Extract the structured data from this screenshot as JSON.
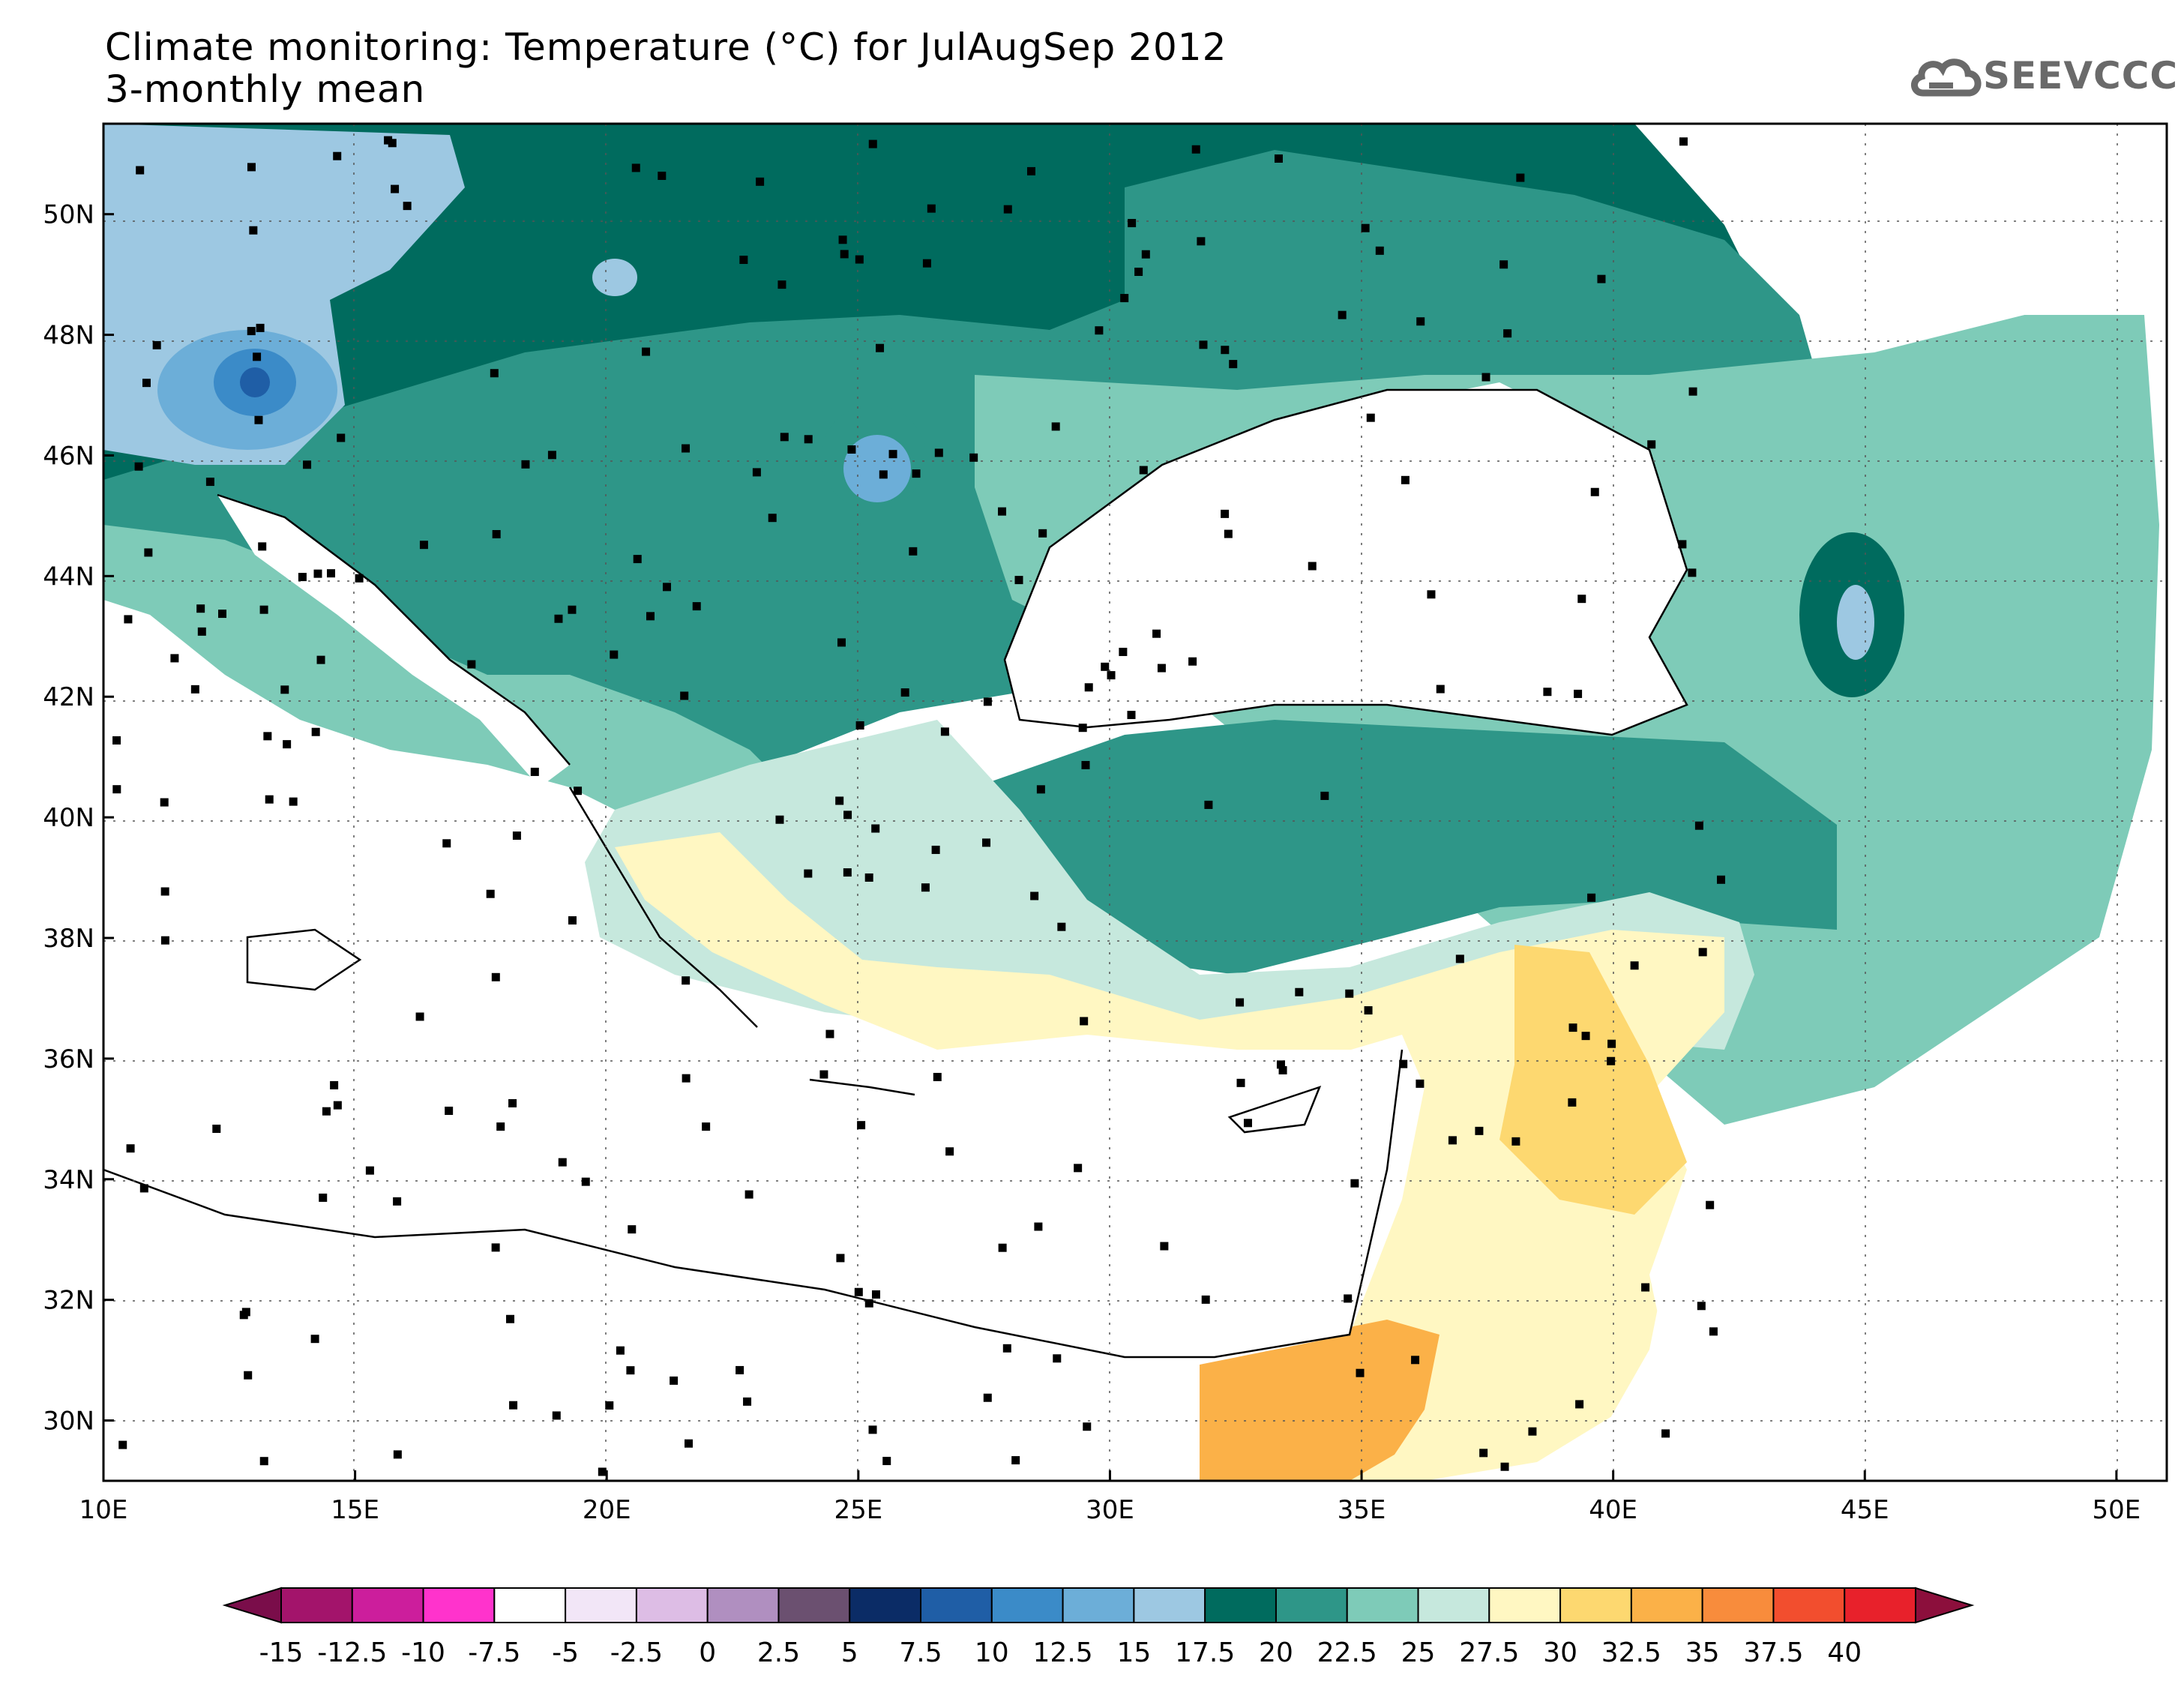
{
  "title": {
    "line1": "Climate monitoring: Temperature (°C) for JulAugSep 2012",
    "line2": "3-monthly mean"
  },
  "logo": {
    "text": "SEEVCCC",
    "icon": "cloud-icon"
  },
  "map": {
    "lon_range": [
      10,
      51
    ],
    "lat_range": [
      29,
      51.5
    ],
    "lon_ticks": [
      "10E",
      "15E",
      "20E",
      "25E",
      "30E",
      "35E",
      "40E",
      "45E",
      "50E"
    ],
    "lat_ticks": [
      "30N",
      "32N",
      "34N",
      "36N",
      "38N",
      "40N",
      "42N",
      "44N",
      "46N",
      "48N",
      "50N"
    ],
    "grid": "dotted"
  },
  "colorbar": {
    "labels": [
      "-15",
      "-12.5",
      "-10",
      "-7.5",
      "-5",
      "-2.5",
      "0",
      "2.5",
      "5",
      "7.5",
      "10",
      "12.5",
      "15",
      "17.5",
      "20",
      "22.5",
      "25",
      "27.5",
      "30",
      "32.5",
      "35",
      "37.5",
      "40"
    ],
    "colors": [
      "#7a0d4a",
      "#a3146b",
      "#cc1e9c",
      "#ff33cc",
      "#ffffff",
      "#f2e6f7",
      "#ddbde5",
      "#b08fc0",
      "#6b5070",
      "#0b2c66",
      "#1f5ea6",
      "#3b8bc8",
      "#6caed8",
      "#9dc8e2",
      "#006b5e",
      "#2e9688",
      "#7ecbb8",
      "#c6e8dd",
      "#fff7c2",
      "#fdd870",
      "#fbb148",
      "#f88c3c",
      "#f24e2e",
      "#e8212b",
      "#8c0f3c"
    ]
  }
}
